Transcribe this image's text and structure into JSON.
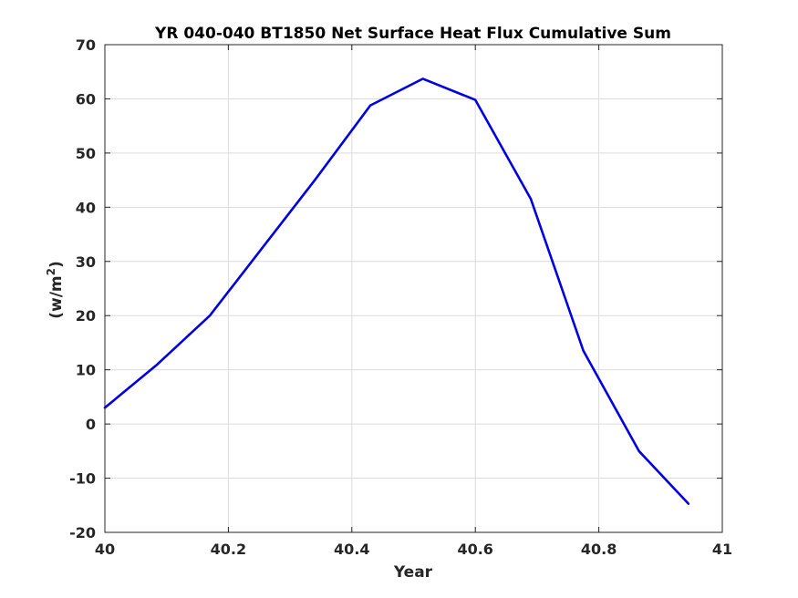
{
  "chart_data": {
    "type": "line",
    "title": "YR 040-040 BT1850 Net Surface Heat Flux  Cumulative Sum",
    "xlabel": "Year",
    "ylabel": "(w/m",
    "ylabel_superscript": "2",
    "ylabel_close": ")",
    "xlim": [
      40,
      41
    ],
    "ylim": [
      -20,
      70
    ],
    "xticks": [
      40,
      40.2,
      40.4,
      40.6,
      40.8,
      41
    ],
    "xtick_labels": [
      "40",
      "40.2",
      "40.4",
      "40.6",
      "40.8",
      "41"
    ],
    "yticks": [
      -20,
      -10,
      0,
      10,
      20,
      30,
      40,
      50,
      60,
      70
    ],
    "ytick_labels": [
      "-20",
      "-10",
      "0",
      "10",
      "20",
      "30",
      "40",
      "50",
      "60",
      "70"
    ],
    "grid": true,
    "series": [
      {
        "color": "#0000e0",
        "x": [
          40.0,
          40.085,
          40.17,
          40.255,
          40.34,
          40.43,
          40.515,
          40.6,
          40.69,
          40.775,
          40.865,
          40.945
        ],
        "y": [
          3.0,
          11.0,
          20.0,
          32.5,
          45.0,
          58.8,
          63.7,
          59.8,
          41.5,
          13.5,
          -5.0,
          -14.7
        ]
      }
    ]
  }
}
